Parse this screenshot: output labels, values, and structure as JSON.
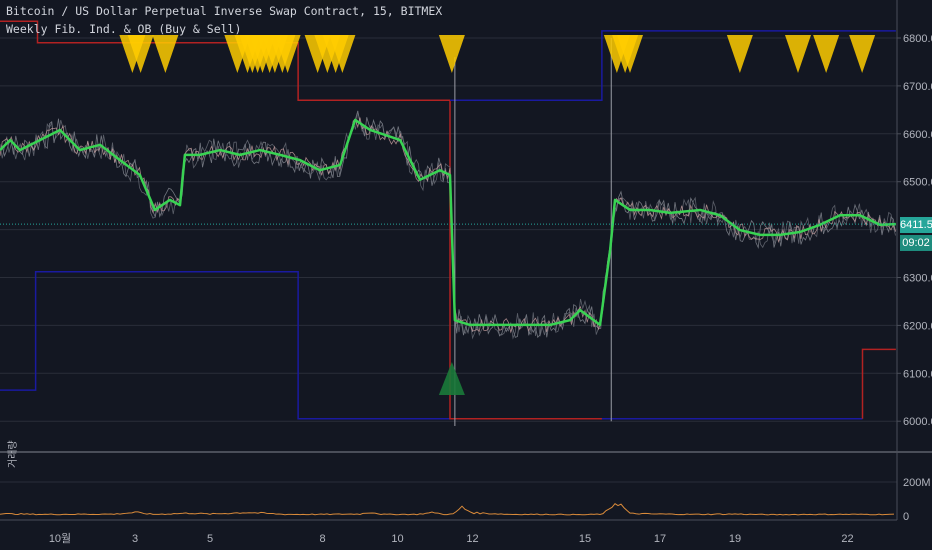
{
  "header": {
    "symbol_line": "Bitcoin / US Dollar Perpetual Inverse Swap Contract, 15, BITMEX",
    "indicator_line": "Weekly Fib. Ind. & OB (Buy & Sell)"
  },
  "price_scale": {
    "ticks": [
      "6800.0",
      "6700.0",
      "6600.0",
      "6500.0",
      "6300.0",
      "6200.0",
      "6100.0",
      "6000.0"
    ],
    "last_price": "6411.5",
    "countdown": "09:02",
    "last_price_color": "#26a69a"
  },
  "volume_pane": {
    "label": "거래량",
    "ticks": [
      "200M",
      "0"
    ]
  },
  "time_axis": {
    "labels": [
      "10월",
      "3",
      "5",
      "8",
      "10",
      "12",
      "15",
      "17",
      "19",
      "22"
    ]
  },
  "colors": {
    "ma": "#39d353",
    "sell_signal": "#ffcc00",
    "buy_signal": "#1b7a3a",
    "fib_low": "#1a1aa0",
    "fib_high": "#b22222",
    "volume": "#d98a3a",
    "background": "#131722"
  },
  "chart_data": {
    "type": "line",
    "xlabel": "",
    "ylabel": "",
    "x_unit": "day of month (October)",
    "ylim": [
      5920,
      6880
    ],
    "grid": true,
    "x_ticks": [
      1,
      3,
      5,
      8,
      10,
      12,
      15,
      17,
      19,
      22
    ],
    "y_ticks": [
      6000,
      6100,
      6200,
      6300,
      6400,
      6500,
      6600,
      6700,
      6800
    ],
    "price": {
      "x": [
        -0.6,
        -0.33,
        -0.07,
        0.47,
        1,
        1.53,
        2.07,
        2.6,
        3.13,
        3.53,
        3.93,
        4.2,
        4.33,
        4.73,
        5.27,
        5.8,
        6.33,
        6.87,
        7.4,
        7.93,
        8.47,
        8.87,
        9.27,
        10.07,
        10.6,
        11.13,
        11.4,
        11.53,
        11.93,
        12.47,
        13.27,
        14.07,
        14.6,
        14.87,
        15.4,
        15.67,
        15.8,
        16.2,
        16.73,
        17.27,
        18.07,
        18.6,
        19.13,
        19.67,
        20.2,
        20.73,
        21.27,
        21.8,
        22.33,
        22.87,
        23.29
      ],
      "y": [
        6566,
        6587,
        6566,
        6587,
        6608,
        6566,
        6577,
        6545,
        6514,
        6441,
        6462,
        6451,
        6556,
        6556,
        6566,
        6556,
        6566,
        6556,
        6545,
        6524,
        6535,
        6629,
        6608,
        6587,
        6504,
        6524,
        6514,
        6211,
        6201,
        6201,
        6201,
        6201,
        6211,
        6232,
        6201,
        6357,
        6462,
        6441,
        6441,
        6435,
        6441,
        6430,
        6399,
        6389,
        6389,
        6395,
        6410,
        6430,
        6430,
        6410,
        6411.5
      ]
    },
    "fib_low_steps": [
      [
        -0.6,
        6065
      ],
      [
        0.35,
        6065
      ],
      [
        0.35,
        6312
      ],
      [
        7.35,
        6312
      ],
      [
        7.35,
        6005
      ],
      [
        22.4,
        6005
      ]
    ],
    "fib_high_steps": [
      [
        -0.6,
        6835
      ],
      [
        0.4,
        6835
      ],
      [
        0.4,
        6790
      ],
      [
        7.35,
        6790
      ],
      [
        7.35,
        6670
      ],
      [
        11.4,
        6670
      ],
      [
        11.4,
        6005
      ],
      [
        15.45,
        6005
      ]
    ],
    "fib_upper_steps": [
      [
        11.4,
        6670
      ],
      [
        15.45,
        6670
      ],
      [
        15.45,
        6815
      ],
      [
        23.29,
        6815
      ]
    ],
    "fib_right_step": [
      [
        22.4,
        6005
      ],
      [
        22.4,
        6150
      ],
      [
        23.29,
        6150
      ]
    ],
    "sell_signals": [
      2.93,
      3.15,
      3.81,
      5.73,
      6.0,
      6.13,
      6.27,
      6.4,
      6.59,
      6.73,
      6.93,
      7.07,
      7.87,
      8.13,
      8.35,
      8.53,
      11.45,
      15.85,
      16.07,
      16.2,
      19.13,
      20.68,
      21.43,
      22.39
    ],
    "buy_signals": [
      11.45
    ],
    "volume": {
      "x": [
        -0.6,
        0.5,
        2.5,
        3.0,
        3.5,
        4.5,
        5.0,
        6.0,
        7.0,
        8.0,
        9.0,
        9.3,
        9.6,
        10.5,
        11.0,
        11.2,
        11.5,
        11.7,
        12.0,
        12.4,
        13.0,
        14.0,
        15.0,
        15.5,
        15.7,
        15.85,
        16.2,
        17.0,
        18.0,
        19.0,
        20.0,
        21.0,
        22.0,
        23.29
      ],
      "y": [
        14,
        10,
        12,
        22,
        10,
        18,
        12,
        22,
        10,
        10,
        12,
        24,
        10,
        10,
        22,
        10,
        12,
        55,
        20,
        16,
        10,
        10,
        8,
        12,
        60,
        90,
        15,
        12,
        10,
        12,
        8,
        10,
        10,
        10
      ]
    }
  }
}
